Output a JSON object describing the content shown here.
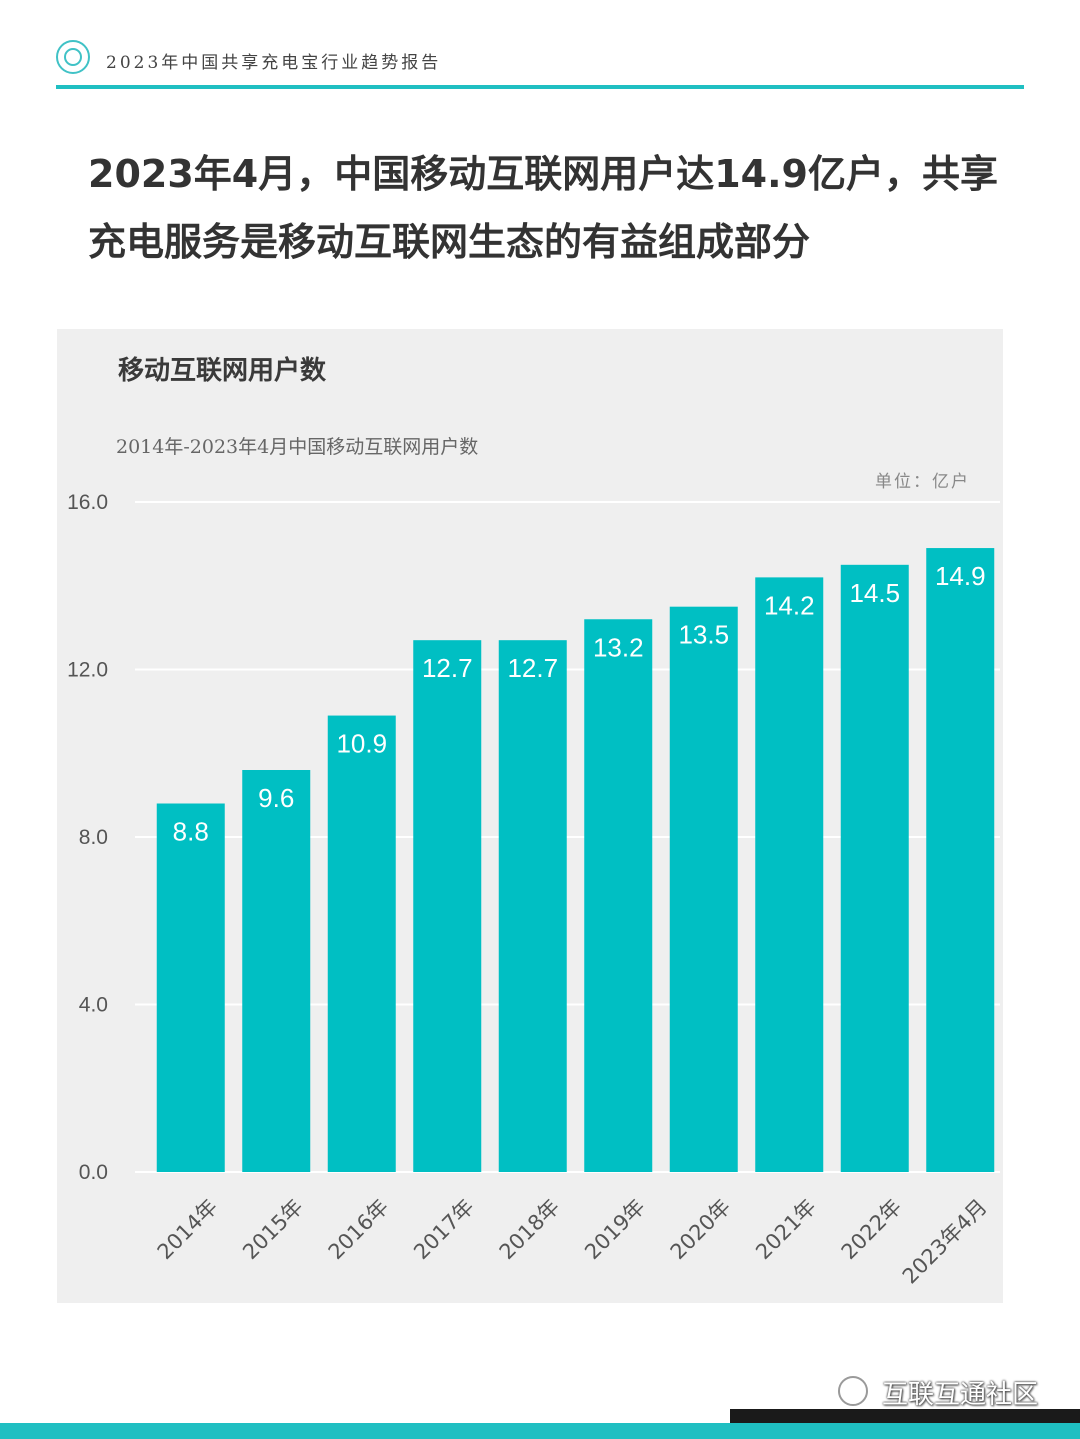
{
  "header": {
    "report_name": "2023年中国共享充电宝行业趋势报告"
  },
  "headline": "2023年4月，中国移动互联网用户达14.9亿户，共享充电服务是移动互联网生态的有益组成部分",
  "watermark": "互联互通社区",
  "colors": {
    "accent": "#1fbfc2",
    "bar": "#00bfc3",
    "card_bg": "#efefef"
  },
  "chart_data": {
    "type": "bar",
    "title": "移动互联网用户数",
    "subtitle": "2014年-2023年4月中国移动互联网用户数",
    "unit": "单位：亿户",
    "categories": [
      "2014年",
      "2015年",
      "2016年",
      "2017年",
      "2018年",
      "2019年",
      "2020年",
      "2021年",
      "2022年",
      "2023年4月"
    ],
    "values": [
      8.8,
      9.6,
      10.9,
      12.7,
      12.7,
      13.2,
      13.5,
      14.2,
      14.5,
      14.9
    ],
    "value_labels": [
      "8.8",
      "9.6",
      "10.9",
      "12.7",
      "12.7",
      "13.2",
      "13.5",
      "14.2",
      "14.5",
      "14.9"
    ],
    "ylim": [
      0,
      16
    ],
    "yticks": [
      "0.0",
      "4.0",
      "8.0",
      "12.0",
      "16.0"
    ],
    "ytick_values": [
      0,
      4,
      8,
      12,
      16
    ],
    "grid": true,
    "xlabel": "",
    "ylabel": ""
  }
}
